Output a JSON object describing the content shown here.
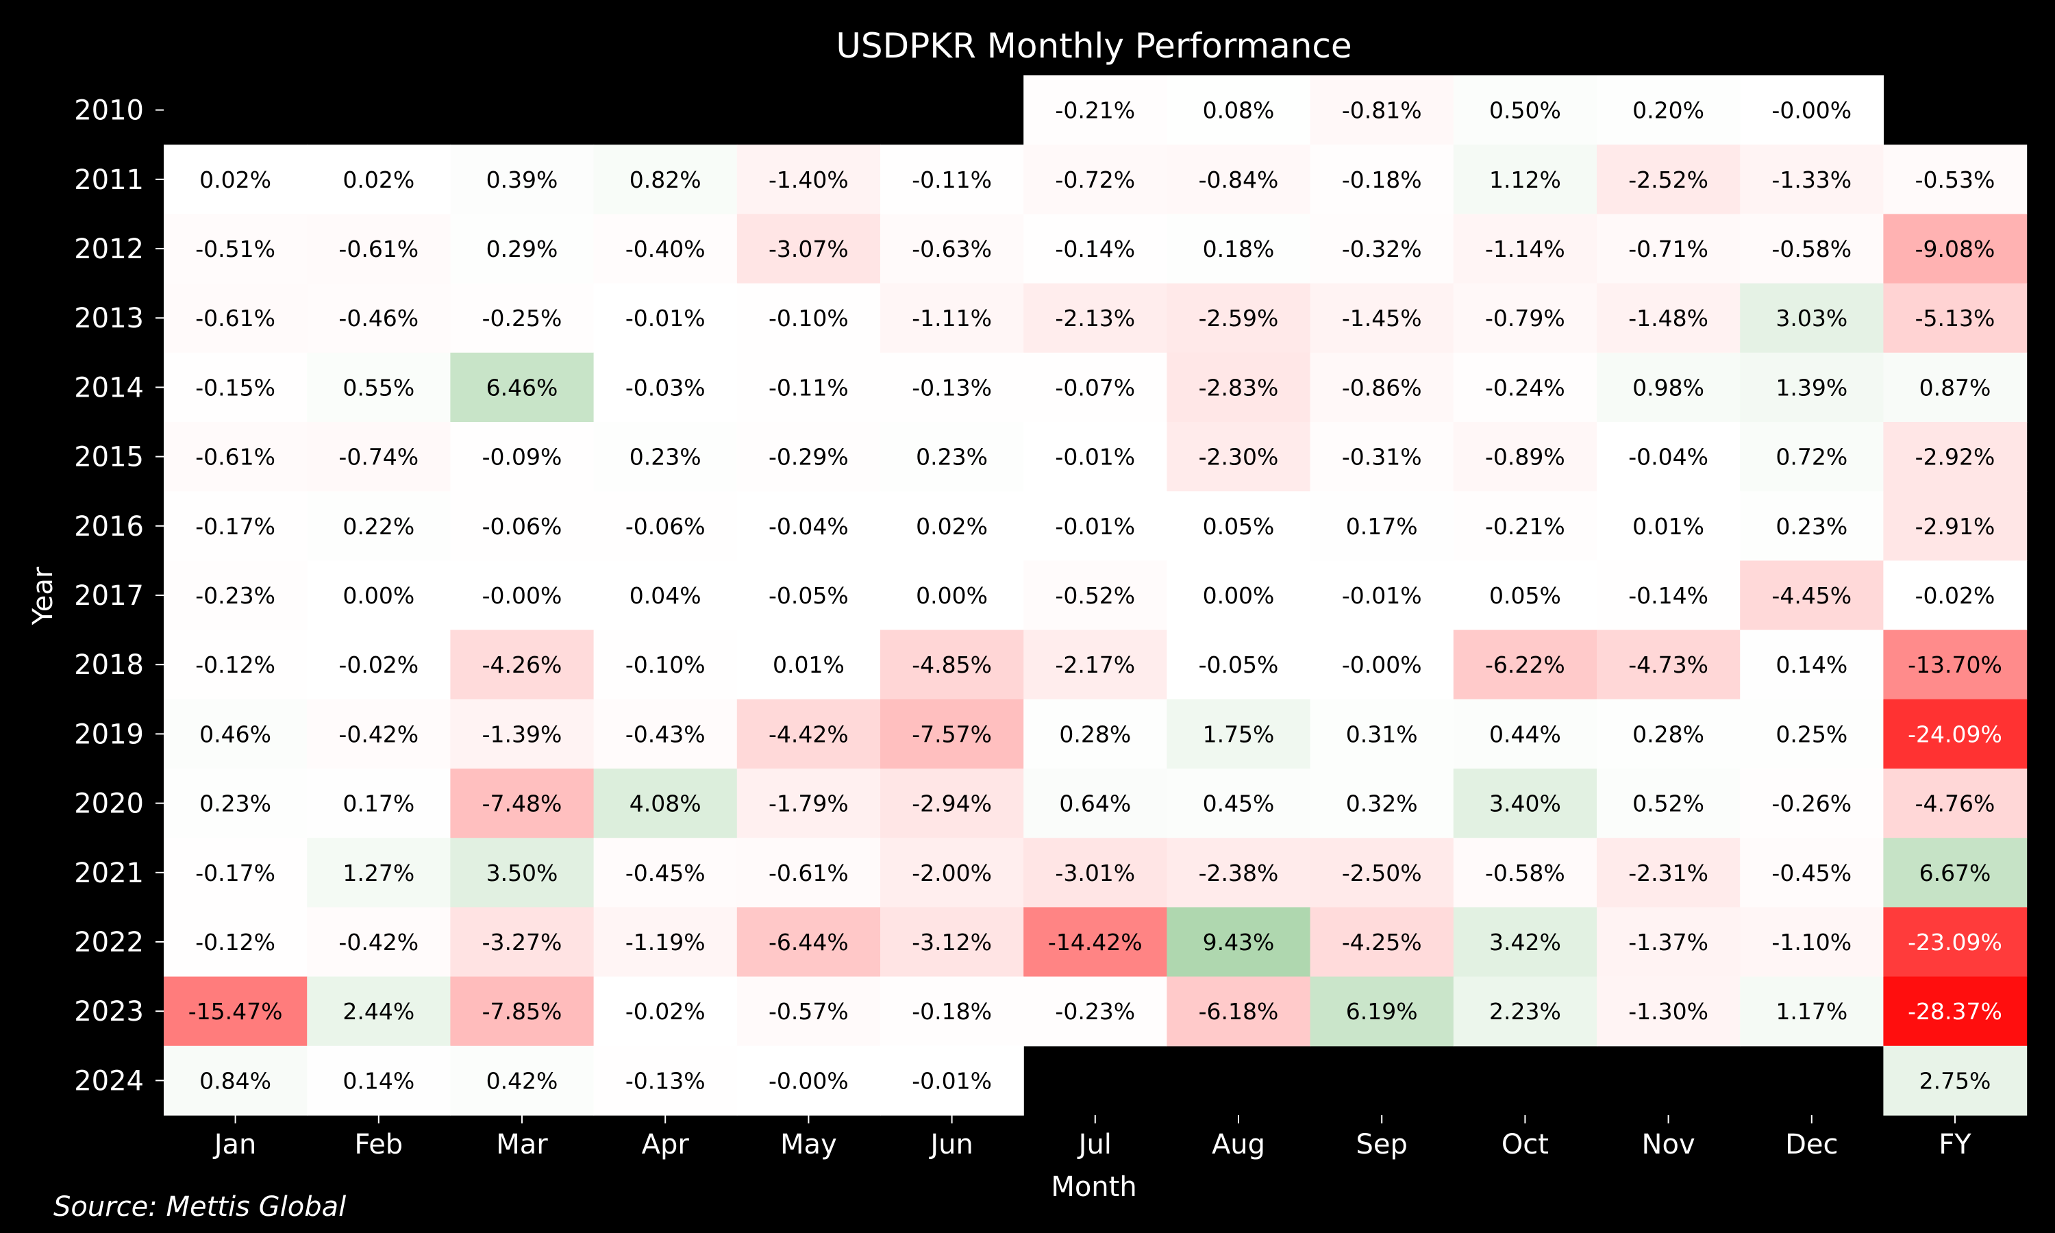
{
  "chart_data": {
    "type": "heatmap",
    "title": "USDPKR Monthly Performance",
    "xlabel": "Month",
    "ylabel": "Year",
    "columns": [
      "Jan",
      "Feb",
      "Mar",
      "Apr",
      "May",
      "Jun",
      "Jul",
      "Aug",
      "Sep",
      "Oct",
      "Nov",
      "Dec",
      "FY"
    ],
    "rows": [
      "2010",
      "2011",
      "2012",
      "2013",
      "2014",
      "2015",
      "2016",
      "2017",
      "2018",
      "2019",
      "2020",
      "2021",
      "2022",
      "2023",
      "2024"
    ],
    "values": [
      [
        null,
        null,
        null,
        null,
        null,
        null,
        -0.21,
        0.08,
        -0.81,
        0.5,
        0.2,
        -0.0,
        null
      ],
      [
        0.02,
        0.02,
        0.39,
        0.82,
        -1.4,
        -0.11,
        -0.72,
        -0.84,
        -0.18,
        1.12,
        -2.52,
        -1.33,
        -0.53
      ],
      [
        -0.51,
        -0.61,
        0.29,
        -0.4,
        -3.07,
        -0.63,
        -0.14,
        0.18,
        -0.32,
        -1.14,
        -0.71,
        -0.58,
        -9.08
      ],
      [
        -0.61,
        -0.46,
        -0.25,
        -0.01,
        -0.1,
        -1.11,
        -2.13,
        -2.59,
        -1.45,
        -0.79,
        -1.48,
        3.03,
        -5.13
      ],
      [
        -0.15,
        0.55,
        6.46,
        -0.03,
        -0.11,
        -0.13,
        -0.07,
        -2.83,
        -0.86,
        -0.24,
        0.98,
        1.39,
        0.87
      ],
      [
        -0.61,
        -0.74,
        -0.09,
        0.23,
        -0.29,
        0.23,
        -0.01,
        -2.3,
        -0.31,
        -0.89,
        -0.04,
        0.72,
        -2.92
      ],
      [
        -0.17,
        0.22,
        -0.06,
        -0.06,
        -0.04,
        0.02,
        -0.01,
        0.05,
        0.17,
        -0.21,
        0.01,
        0.23,
        -2.91
      ],
      [
        -0.23,
        0.0,
        -0.0,
        0.04,
        -0.05,
        0.0,
        -0.52,
        0.0,
        -0.01,
        0.05,
        -0.14,
        -4.45,
        -0.02
      ],
      [
        -0.12,
        -0.02,
        -4.26,
        -0.1,
        0.01,
        -4.85,
        -2.17,
        -0.05,
        -0.0,
        -6.22,
        -4.73,
        0.14,
        -13.7
      ],
      [
        0.46,
        -0.42,
        -1.39,
        -0.43,
        -4.42,
        -7.57,
        0.28,
        1.75,
        0.31,
        0.44,
        0.28,
        0.25,
        -24.09
      ],
      [
        0.23,
        0.17,
        -7.48,
        4.08,
        -1.79,
        -2.94,
        0.64,
        0.45,
        0.32,
        3.4,
        0.52,
        -0.26,
        -4.76
      ],
      [
        -0.17,
        1.27,
        3.5,
        -0.45,
        -0.61,
        -2.0,
        -3.01,
        -2.38,
        -2.5,
        -0.58,
        -2.31,
        -0.45,
        6.67
      ],
      [
        -0.12,
        -0.42,
        -3.27,
        -1.19,
        -6.44,
        -3.12,
        -14.42,
        9.43,
        -4.25,
        3.42,
        -1.37,
        -1.1,
        -23.09
      ],
      [
        -15.47,
        2.44,
        -7.85,
        -0.02,
        -0.57,
        -0.18,
        -0.23,
        -6.18,
        6.19,
        2.23,
        -1.3,
        1.17,
        -28.37
      ],
      [
        0.84,
        0.14,
        0.42,
        -0.13,
        -0.0,
        -0.01,
        null,
        null,
        null,
        null,
        null,
        null,
        2.75
      ]
    ],
    "labels": [
      [
        null,
        null,
        null,
        null,
        null,
        null,
        "-0.21%",
        "0.08%",
        "-0.81%",
        "0.50%",
        "0.20%",
        "-0.00%",
        null
      ],
      [
        "0.02%",
        "0.02%",
        "0.39%",
        "0.82%",
        "-1.40%",
        "-0.11%",
        "-0.72%",
        "-0.84%",
        "-0.18%",
        "1.12%",
        "-2.52%",
        "-1.33%",
        "-0.53%"
      ],
      [
        "-0.51%",
        "-0.61%",
        "0.29%",
        "-0.40%",
        "-3.07%",
        "-0.63%",
        "-0.14%",
        "0.18%",
        "-0.32%",
        "-1.14%",
        "-0.71%",
        "-0.58%",
        "-9.08%"
      ],
      [
        "-0.61%",
        "-0.46%",
        "-0.25%",
        "-0.01%",
        "-0.10%",
        "-1.11%",
        "-2.13%",
        "-2.59%",
        "-1.45%",
        "-0.79%",
        "-1.48%",
        "3.03%",
        "-5.13%"
      ],
      [
        "-0.15%",
        "0.55%",
        "6.46%",
        "-0.03%",
        "-0.11%",
        "-0.13%",
        "-0.07%",
        "-2.83%",
        "-0.86%",
        "-0.24%",
        "0.98%",
        "1.39%",
        "0.87%"
      ],
      [
        "-0.61%",
        "-0.74%",
        "-0.09%",
        "0.23%",
        "-0.29%",
        "0.23%",
        "-0.01%",
        "-2.30%",
        "-0.31%",
        "-0.89%",
        "-0.04%",
        "0.72%",
        "-2.92%"
      ],
      [
        "-0.17%",
        "0.22%",
        "-0.06%",
        "-0.06%",
        "-0.04%",
        "0.02%",
        "-0.01%",
        "0.05%",
        "0.17%",
        "-0.21%",
        "0.01%",
        "0.23%",
        "-2.91%"
      ],
      [
        "-0.23%",
        "0.00%",
        "-0.00%",
        "0.04%",
        "-0.05%",
        "0.00%",
        "-0.52%",
        "0.00%",
        "-0.01%",
        "0.05%",
        "-0.14%",
        "-4.45%",
        "-0.02%"
      ],
      [
        "-0.12%",
        "-0.02%",
        "-4.26%",
        "-0.10%",
        "0.01%",
        "-4.85%",
        "-2.17%",
        "-0.05%",
        "-0.00%",
        "-6.22%",
        "-4.73%",
        "0.14%",
        "-13.70%"
      ],
      [
        "0.46%",
        "-0.42%",
        "-1.39%",
        "-0.43%",
        "-4.42%",
        "-7.57%",
        "0.28%",
        "1.75%",
        "0.31%",
        "0.44%",
        "0.28%",
        "0.25%",
        "-24.09%"
      ],
      [
        "0.23%",
        "0.17%",
        "-7.48%",
        "4.08%",
        "-1.79%",
        "-2.94%",
        "0.64%",
        "0.45%",
        "0.32%",
        "3.40%",
        "0.52%",
        "-0.26%",
        "-4.76%"
      ],
      [
        "-0.17%",
        "1.27%",
        "3.50%",
        "-0.45%",
        "-0.61%",
        "-2.00%",
        "-3.01%",
        "-2.38%",
        "-2.50%",
        "-0.58%",
        "-2.31%",
        "-0.45%",
        "6.67%"
      ],
      [
        "-0.12%",
        "-0.42%",
        "-3.27%",
        "-1.19%",
        "-6.44%",
        "-3.12%",
        "-14.42%",
        "9.43%",
        "-4.25%",
        "3.42%",
        "-1.37%",
        "-1.10%",
        "-23.09%"
      ],
      [
        "-15.47%",
        "2.44%",
        "-7.85%",
        "-0.02%",
        "-0.57%",
        "-0.18%",
        "-0.23%",
        "-6.18%",
        "6.19%",
        "2.23%",
        "-1.30%",
        "1.17%",
        "-28.37%"
      ],
      [
        "0.84%",
        "0.14%",
        "0.42%",
        "-0.13%",
        "-0.00%",
        "-0.01%",
        null,
        null,
        null,
        null,
        null,
        null,
        "2.75%"
      ]
    ],
    "color_scale": {
      "negative": "#ff0000",
      "neutral": "#ffffff",
      "positive": "#008000",
      "range": [
        -30,
        30
      ]
    },
    "grid": false,
    "legend": "none",
    "source": "Source: Mettis Global"
  }
}
